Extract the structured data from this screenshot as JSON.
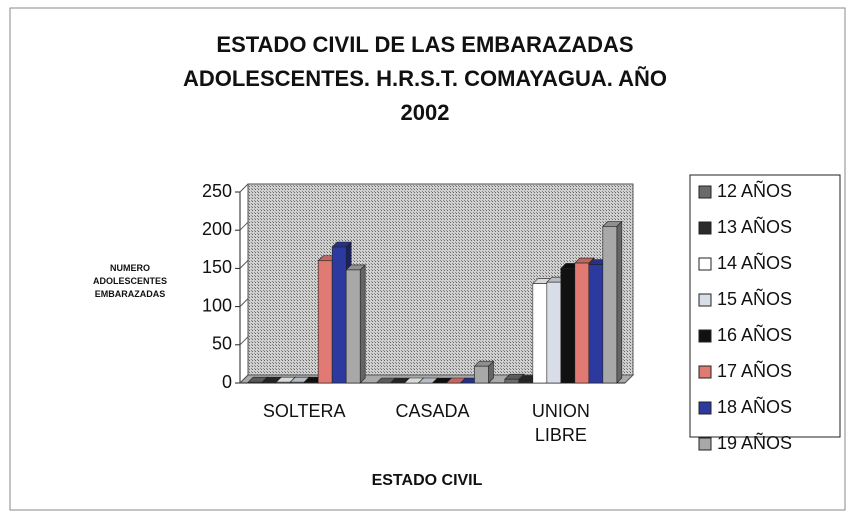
{
  "chart_data": {
    "type": "bar",
    "title": [
      "ESTADO CIVIL DE LAS EMBARAZADAS",
      "ADOLESCENTES.  H.R.S.T. COMAYAGUA.  AÑO",
      "2002"
    ],
    "x_label": "ESTADO CIVIL",
    "y_label": "NUMERO ADOLESCENTES EMBARAZADAS",
    "categories": [
      "SOLTERA",
      "CASADA",
      "UNION LIBRE"
    ],
    "series": [
      {
        "name": "12 AÑOS",
        "color": "#6b6b6b",
        "values": [
          1,
          0,
          5
        ]
      },
      {
        "name": "13 AÑOS",
        "color": "#2a2a2a",
        "values": [
          1,
          0,
          3
        ]
      },
      {
        "name": "14 AÑOS",
        "color": "#ffffff",
        "values": [
          1,
          0,
          130
        ]
      },
      {
        "name": "15 AÑOS",
        "color": "#d8dde8",
        "values": [
          1,
          0,
          132
        ]
      },
      {
        "name": "16 AÑOS",
        "color": "#111111",
        "values": [
          1,
          0,
          150
        ]
      },
      {
        "name": "17 AÑOS",
        "color": "#e07a72",
        "values": [
          160,
          0,
          157
        ]
      },
      {
        "name": "18 AÑOS",
        "color": "#2c3aa0",
        "values": [
          178,
          0,
          155
        ]
      },
      {
        "name": "19 AÑOS",
        "color": "#a8a8a8",
        "values": [
          148,
          22,
          205
        ]
      }
    ],
    "ylim": [
      0,
      250
    ],
    "yticks": [
      0,
      50,
      100,
      150,
      200,
      250
    ],
    "legend": "right"
  }
}
